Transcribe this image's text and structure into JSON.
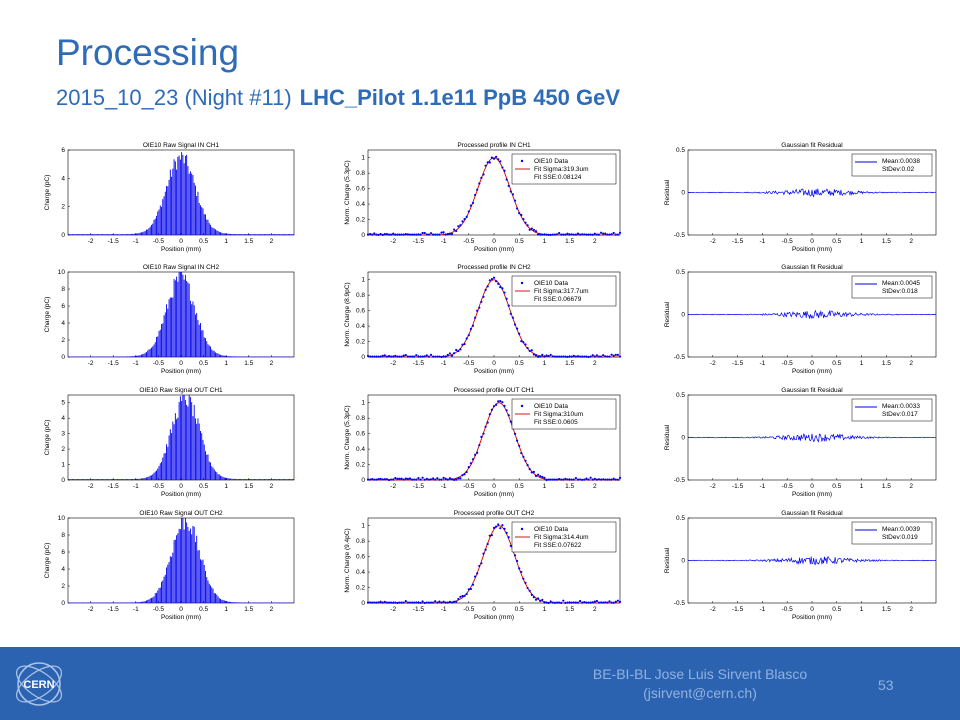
{
  "slide": {
    "title": "Processing",
    "subtitle_plain": "2015_10_23  (Night #11)",
    "subtitle_bold": "LHC_Pilot 1.1e11 PpB  450 GeV",
    "credit_line1": "BE-BI-BL Jose Luis Sirvent Blasco",
    "credit_line2": "(jsirvent@cern.ch)",
    "page_number": "53",
    "logo_text": "CERN"
  },
  "colors": {
    "title": "#2e6bb8",
    "footer": "#2c63b1",
    "data_blue": "#0000ee",
    "fit_red": "#cc0000",
    "text_light": "#8fb1e0"
  },
  "chart_data": [
    {
      "type": "bar",
      "row": 0,
      "title": "OIE10 Raw Signal IN CH1",
      "xlabel": "Position (mm)",
      "ylabel": "Charge (pC)",
      "xlim": [
        -2.5,
        2.5
      ],
      "ylim": [
        0,
        6
      ],
      "yticks": [
        0,
        2,
        4,
        6
      ],
      "xticks": [
        -2,
        -1.5,
        -1,
        -0.5,
        0,
        0.5,
        1,
        1.5,
        2
      ],
      "sigma": 0.3193,
      "center": 0.0,
      "peak": 5.4
    },
    {
      "type": "line",
      "row": 0,
      "title": "Processed profile IN CH1",
      "xlabel": "Position (mm)",
      "ylabel": "Norm. Charge (5.3pC)",
      "xlim": [
        -2.5,
        2.5
      ],
      "ylim": [
        0,
        1.1
      ],
      "yticks": [
        0,
        0.2,
        0.4,
        0.6,
        0.8,
        1
      ],
      "xticks": [
        -2,
        -1.5,
        -1,
        -0.5,
        0,
        0.5,
        1,
        1.5,
        2
      ],
      "sigma": 0.3193,
      "center": 0.0,
      "legend": [
        "OIE10 Data",
        "Fit Sigma:319.3um",
        "Fit SSE:0.08124"
      ],
      "legend_position": "top-right"
    },
    {
      "type": "line",
      "row": 0,
      "title": "Gaussian fit Residual",
      "xlabel": "Position (mm)",
      "ylabel": "Residual",
      "xlim": [
        -2.5,
        2.5
      ],
      "ylim": [
        -0.5,
        0.5
      ],
      "yticks": [
        -0.5,
        0,
        0.5
      ],
      "xticks": [
        -2,
        -1.5,
        -1,
        -0.5,
        0,
        0.5,
        1,
        1.5,
        2
      ],
      "legend": [
        "Mean:0.0038",
        "StDev:0.02"
      ],
      "legend_position": "top-right"
    },
    {
      "type": "bar",
      "row": 1,
      "title": "OIE10 Raw Signal IN CH2",
      "xlabel": "Position (mm)",
      "ylabel": "Charge (pC)",
      "xlim": [
        -2.5,
        2.5
      ],
      "ylim": [
        0,
        10
      ],
      "yticks": [
        0,
        2,
        4,
        6,
        8,
        10
      ],
      "xticks": [
        -2,
        -1.5,
        -1,
        -0.5,
        0,
        0.5,
        1,
        1.5,
        2
      ],
      "sigma": 0.3177,
      "center": 0.0,
      "peak": 9.2
    },
    {
      "type": "line",
      "row": 1,
      "title": "Processed profile IN CH2",
      "xlabel": "Position (mm)",
      "ylabel": "Norm. Charge (8.9pC)",
      "xlim": [
        -2.5,
        2.5
      ],
      "ylim": [
        0,
        1.1
      ],
      "yticks": [
        0,
        0.2,
        0.4,
        0.6,
        0.8,
        1
      ],
      "xticks": [
        -2,
        -1.5,
        -1,
        -0.5,
        0,
        0.5,
        1,
        1.5,
        2
      ],
      "sigma": 0.3177,
      "center": 0.0,
      "legend": [
        "OIE10 Data",
        "Fit Sigma:317.7um",
        "Fit SSE:0.06679"
      ],
      "legend_position": "top-right"
    },
    {
      "type": "line",
      "row": 1,
      "title": "Gaussian fit Residual",
      "xlabel": "Position (mm)",
      "ylabel": "Residual",
      "xlim": [
        -2.5,
        2.5
      ],
      "ylim": [
        -0.5,
        0.5
      ],
      "yticks": [
        -0.5,
        0,
        0.5
      ],
      "xticks": [
        -2,
        -1.5,
        -1,
        -0.5,
        0,
        0.5,
        1,
        1.5,
        2
      ],
      "legend": [
        "Mean:0.0045",
        "StDev:0.018"
      ],
      "legend_position": "top-right"
    },
    {
      "type": "bar",
      "row": 2,
      "title": "OIE10 Raw Signal OUT CH1",
      "xlabel": "Position (mm)",
      "ylabel": "Charge (pC)",
      "xlim": [
        -2.5,
        2.5
      ],
      "ylim": [
        0,
        5.5
      ],
      "yticks": [
        0,
        1,
        2,
        3,
        4,
        5
      ],
      "xticks": [
        -2,
        -1.5,
        -1,
        -0.5,
        0,
        0.5,
        1,
        1.5,
        2
      ],
      "sigma": 0.31,
      "center": 0.1,
      "peak": 5.2
    },
    {
      "type": "line",
      "row": 2,
      "title": "Processed profile OUT CH1",
      "xlabel": "Position (mm)",
      "ylabel": "Norm. Charge (5.3pC)",
      "xlim": [
        -2.5,
        2.5
      ],
      "ylim": [
        0,
        1.1
      ],
      "yticks": [
        0,
        0.2,
        0.4,
        0.6,
        0.8,
        1
      ],
      "xticks": [
        -2,
        -1.5,
        -1,
        -0.5,
        0,
        0.5,
        1,
        1.5,
        2
      ],
      "sigma": 0.31,
      "center": 0.1,
      "legend": [
        "OIE10 Data",
        "Fit Sigma:310um",
        "Fit SSE:0.0605"
      ],
      "legend_position": "top-right"
    },
    {
      "type": "line",
      "row": 2,
      "title": "Gaussian fit Residual",
      "xlabel": "Position (mm)",
      "ylabel": "Residual",
      "xlim": [
        -2.5,
        2.5
      ],
      "ylim": [
        -0.5,
        0.5
      ],
      "yticks": [
        -0.5,
        0,
        0.5
      ],
      "xticks": [
        -2,
        -1.5,
        -1,
        -0.5,
        0,
        0.5,
        1,
        1.5,
        2
      ],
      "legend": [
        "Mean:0.0033",
        "StDev:0.017"
      ],
      "legend_position": "top-right"
    },
    {
      "type": "bar",
      "row": 3,
      "title": "OIE10 Raw Signal OUT CH2",
      "xlabel": "Position (mm)",
      "ylabel": "Charge (pC)",
      "xlim": [
        -2.5,
        2.5
      ],
      "ylim": [
        0,
        10
      ],
      "yticks": [
        0,
        2,
        4,
        6,
        8,
        10
      ],
      "xticks": [
        -2,
        -1.5,
        -1,
        -0.5,
        0,
        0.5,
        1,
        1.5,
        2
      ],
      "sigma": 0.3144,
      "center": 0.1,
      "peak": 9.6
    },
    {
      "type": "line",
      "row": 3,
      "title": "Processed profile OUT CH2",
      "xlabel": "Position (mm)",
      "ylabel": "Norm. Charge (9.4pC)",
      "xlim": [
        -2.5,
        2.5
      ],
      "ylim": [
        0,
        1.1
      ],
      "yticks": [
        0,
        0.2,
        0.4,
        0.6,
        0.8,
        1
      ],
      "xticks": [
        -2,
        -1.5,
        -1,
        -0.5,
        0,
        0.5,
        1,
        1.5,
        2
      ],
      "sigma": 0.3144,
      "center": 0.1,
      "legend": [
        "OIE10 Data",
        "Fit Sigma:314.4um",
        "Fit SSE:0.07622"
      ],
      "legend_position": "top-right"
    },
    {
      "type": "line",
      "row": 3,
      "title": "Gaussian fit Residual",
      "xlabel": "Position (mm)",
      "ylabel": "Residual",
      "xlim": [
        -2.5,
        2.5
      ],
      "ylim": [
        -0.5,
        0.5
      ],
      "yticks": [
        -0.5,
        0,
        0.5
      ],
      "xticks": [
        -2,
        -1.5,
        -1,
        -0.5,
        0,
        0.5,
        1,
        1.5,
        2
      ],
      "legend": [
        "Mean:0.0039",
        "StDev:0.019"
      ],
      "legend_position": "top-right"
    }
  ]
}
